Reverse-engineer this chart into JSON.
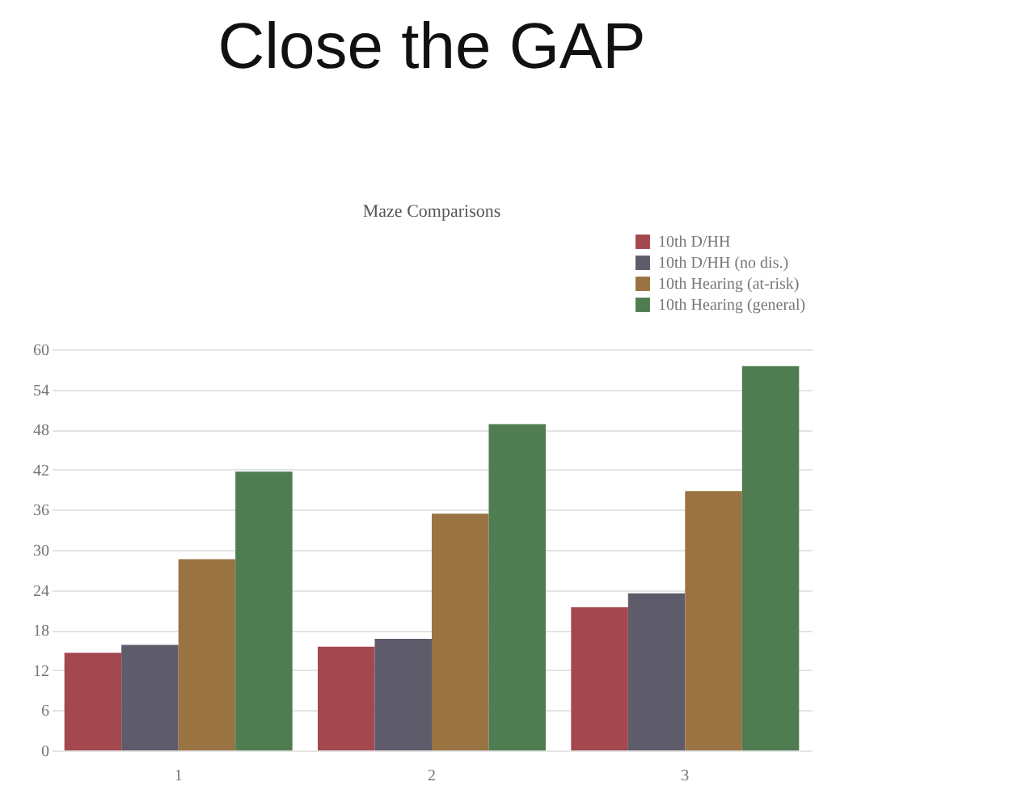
{
  "chart_data": {
    "type": "bar",
    "title": "Close the GAP",
    "subtitle": "Maze Comparisons",
    "categories": [
      "1",
      "2",
      "3"
    ],
    "series": [
      {
        "name": "10th D/HH",
        "color": "#a5474f",
        "values": [
          14.6,
          15.5,
          21.4
        ]
      },
      {
        "name": "10th D/HH (no dis.)",
        "color": "#5e5b6b",
        "values": [
          15.8,
          16.7,
          23.5
        ]
      },
      {
        "name": "10th Hearing (at-risk)",
        "color": "#9a7343",
        "values": [
          28.6,
          35.4,
          38.8
        ]
      },
      {
        "name": "10th Hearing (general)",
        "color": "#4f7d51",
        "values": [
          41.7,
          48.8,
          57.5
        ]
      }
    ],
    "ylim": [
      0,
      60
    ],
    "yticks": [
      0,
      6,
      12,
      18,
      24,
      30,
      36,
      42,
      48,
      54,
      60
    ],
    "grid": "y",
    "legend": "top right"
  }
}
